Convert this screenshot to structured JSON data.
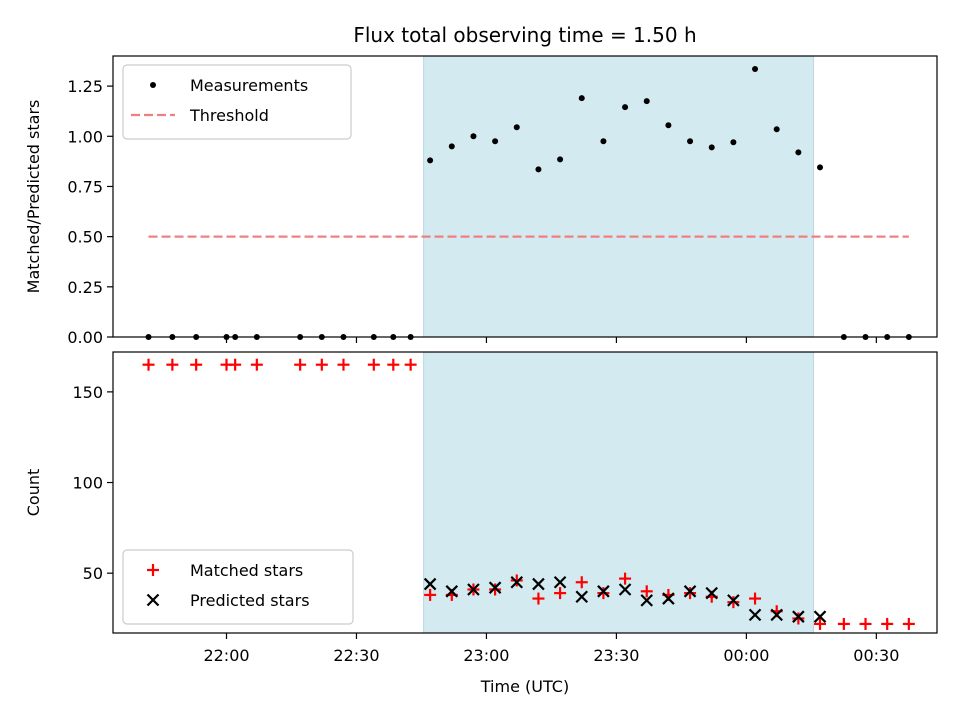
{
  "chart_data": {
    "type": "scatter",
    "title": "Flux total observing time = 1.50 h",
    "xlabel": "Time (UTC)",
    "x_ticks": [
      "22:00",
      "22:30",
      "23:00",
      "23:30",
      "00:00",
      "00:30"
    ],
    "x_tick_minutes": [
      0,
      30,
      60,
      90,
      120,
      150
    ],
    "xlim_minutes": [
      -26.2,
      164.0
    ],
    "shaded_interval_minutes": [
      45.5,
      135.5
    ],
    "shade_color": "#d3eaf1",
    "panels": [
      {
        "id": "ratio",
        "ylabel": "Matched/Predicted stars",
        "ylim": [
          0,
          1.4
        ],
        "y_ticks": [
          "0.00",
          "0.25",
          "0.50",
          "0.75",
          "1.00",
          "1.25"
        ],
        "y_tick_values": [
          0,
          0.25,
          0.5,
          0.75,
          1.0,
          1.25
        ],
        "legend": {
          "placement": "top-left",
          "entries": [
            "Measurements",
            "Threshold"
          ]
        },
        "threshold": {
          "name": "Threshold",
          "value": 0.5,
          "x_range_minutes": [
            -18,
            157.5
          ],
          "color": "#f08080"
        },
        "series": [
          {
            "name": "Measurements",
            "marker": "dot",
            "color": "#000000",
            "points": [
              [
                -18,
                0
              ],
              [
                -12.5,
                0
              ],
              [
                -7,
                0
              ],
              [
                0,
                0
              ],
              [
                2,
                0
              ],
              [
                7,
                0
              ],
              [
                17,
                0
              ],
              [
                22,
                0
              ],
              [
                27,
                0
              ],
              [
                34,
                0
              ],
              [
                38.5,
                0
              ],
              [
                42.5,
                0
              ],
              [
                47,
                0.88
              ],
              [
                52,
                0.95
              ],
              [
                57,
                1.0
              ],
              [
                62,
                0.975
              ],
              [
                67,
                1.045
              ],
              [
                72,
                0.835
              ],
              [
                77,
                0.885
              ],
              [
                82,
                1.19
              ],
              [
                87,
                0.975
              ],
              [
                92,
                1.145
              ],
              [
                97,
                1.175
              ],
              [
                102,
                1.055
              ],
              [
                107,
                0.975
              ],
              [
                112,
                0.945
              ],
              [
                117,
                0.97
              ],
              [
                122,
                1.335
              ],
              [
                127,
                1.035
              ],
              [
                132,
                0.92
              ],
              [
                137,
                0.845
              ],
              [
                142.5,
                0
              ],
              [
                147.5,
                0
              ],
              [
                152.5,
                0
              ],
              [
                157.5,
                0
              ]
            ]
          }
        ]
      },
      {
        "id": "count",
        "ylabel": "Count",
        "ylim": [
          17,
          172
        ],
        "y_ticks": [
          "50",
          "100",
          "150"
        ],
        "y_tick_values": [
          50,
          100,
          150
        ],
        "legend": {
          "placement": "bottom-left",
          "entries": [
            "Matched stars",
            "Predicted stars"
          ]
        },
        "series": [
          {
            "name": "Matched stars",
            "marker": "plus",
            "color": "#ff0000",
            "points": [
              [
                -18,
                165
              ],
              [
                -12.5,
                165
              ],
              [
                -7,
                165
              ],
              [
                0,
                165
              ],
              [
                2,
                165
              ],
              [
                7,
                165
              ],
              [
                17,
                165
              ],
              [
                22,
                165
              ],
              [
                27,
                165
              ],
              [
                34,
                165
              ],
              [
                38.5,
                165
              ],
              [
                42.5,
                165
              ],
              [
                47,
                38
              ],
              [
                52,
                38
              ],
              [
                57,
                41
              ],
              [
                62,
                41
              ],
              [
                67,
                46
              ],
              [
                72,
                36
              ],
              [
                77,
                39
              ],
              [
                82,
                45
              ],
              [
                87,
                39
              ],
              [
                92,
                47
              ],
              [
                97,
                40
              ],
              [
                102,
                38
              ],
              [
                107,
                39
              ],
              [
                112,
                37
              ],
              [
                117,
                34
              ],
              [
                122,
                36
              ],
              [
                127,
                29
              ],
              [
                132,
                25
              ],
              [
                137,
                22
              ],
              [
                142.5,
                22
              ],
              [
                147.5,
                22
              ],
              [
                152.5,
                22
              ],
              [
                157.5,
                22
              ]
            ]
          },
          {
            "name": "Predicted stars",
            "marker": "x",
            "color": "#000000",
            "points": [
              [
                47,
                44
              ],
              [
                52,
                40
              ],
              [
                57,
                41
              ],
              [
                62,
                42
              ],
              [
                67,
                45
              ],
              [
                72,
                44
              ],
              [
                77,
                45
              ],
              [
                82,
                37
              ],
              [
                87,
                40
              ],
              [
                92,
                41
              ],
              [
                97,
                35
              ],
              [
                102,
                36
              ],
              [
                107,
                40
              ],
              [
                112,
                39
              ],
              [
                117,
                35
              ],
              [
                122,
                27
              ],
              [
                127,
                27
              ],
              [
                132,
                26
              ],
              [
                137,
                26
              ]
            ]
          }
        ]
      }
    ]
  }
}
